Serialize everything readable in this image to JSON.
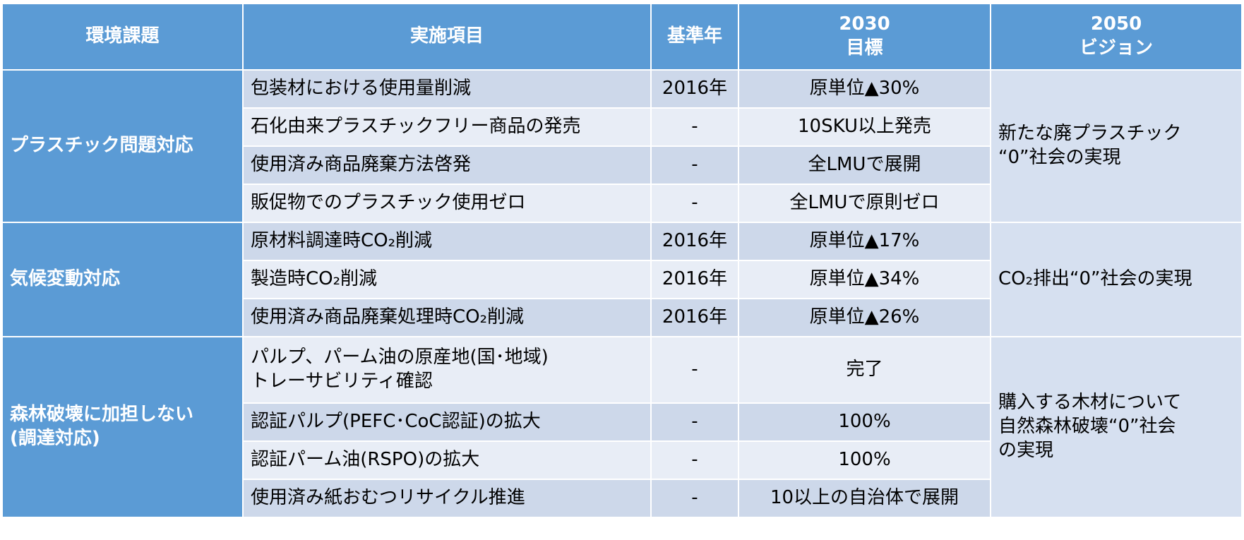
{
  "table": {
    "header": [
      "環境課題",
      "実施項目",
      "基準年",
      "2030\n目標",
      "2050\nビジョン"
    ],
    "groups": [
      {
        "issue": "プラスチック問題対応",
        "vision": "新たな廃プラスチック\n“0”社会の実現",
        "rows": [
          [
            "包装材における使用量削減",
            "2016年",
            "原単位▲30%"
          ],
          [
            "石化由来プラスチックフリー商品の発売",
            "-",
            "10SKU以上発売"
          ],
          [
            "使用済み商品廃棄方法啓発",
            "-",
            "全LMUで展開"
          ],
          [
            "販促物でのプラスチック使用ゼロ",
            "-",
            "全LMUで原則ゼロ"
          ]
        ]
      },
      {
        "issue": "気候変動対応",
        "vision": "CO₂排出“0”社会の実現",
        "rows": [
          [
            "原材料調達時CO₂削減",
            "2016年",
            "原単位▲17%"
          ],
          [
            "製造時CO₂削減",
            "2016年",
            "原単位▲34%"
          ],
          [
            "使用済み商品廃棄処理時CO₂削減",
            "2016年",
            "原単位▲26%"
          ]
        ]
      },
      {
        "issue": "森林破壊に加担しない\n(調達対応)",
        "vision": "購入する木材について\n自然森林破壊“0”社会\nの実現",
        "rows": [
          [
            "パルプ、パーム油の原産地(国･地域)\nトレーサビリティ確認",
            "-",
            "完了"
          ],
          [
            "認証パルプ(PEFC･CoC認証)の拡大",
            "-",
            "100%"
          ],
          [
            "認証パーム油(RSPO)の拡大",
            "-",
            "100%"
          ],
          [
            "使用済み紙おむつリサイクル推進",
            "-",
            "10以上の自治体で展開"
          ]
        ]
      }
    ]
  }
}
